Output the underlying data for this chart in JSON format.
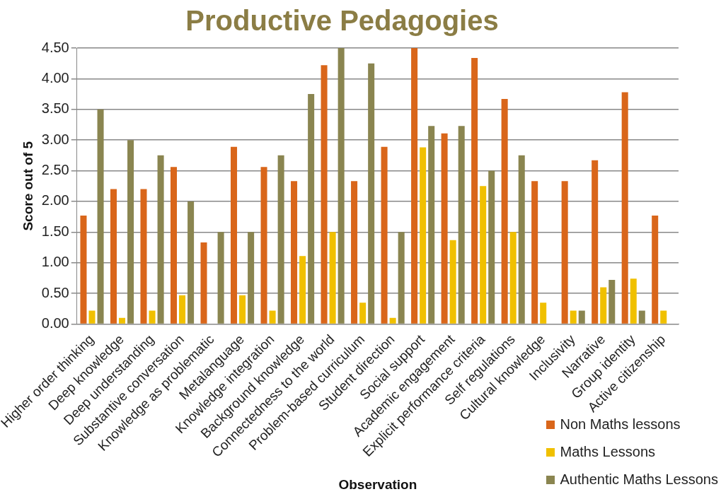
{
  "chart_data": {
    "type": "bar",
    "title": "Productive Pedagogies",
    "xlabel": "Observation",
    "ylabel": "Score out of 5",
    "categories": [
      "Higher order thinking",
      "Deep knowledge",
      "Deep understanding",
      "Substantive conversation",
      "Knowledge as problematic",
      "Metalanguage",
      "Knowledge integration",
      "Background knowledge",
      "Connectedness to the world",
      "Problem-based curriculum",
      "Student direction",
      "Social support",
      "Academic engagement",
      "Explicit performance criteria",
      "Self regulations",
      "Cultural knowledge",
      "Inclusivity",
      "Narrative",
      "Group identity",
      "Active citizenship"
    ],
    "series": [
      {
        "name": "Non Maths lessons",
        "color": "#d9661a",
        "values": [
          1.77,
          2.2,
          2.2,
          2.56,
          1.33,
          2.89,
          2.56,
          2.33,
          4.22,
          2.33,
          2.89,
          4.5,
          3.11,
          4.34,
          3.67,
          2.33,
          2.33,
          2.67,
          3.78,
          1.77
        ]
      },
      {
        "name": "Maths Lessons",
        "color": "#f0c000",
        "values": [
          0.22,
          0.1,
          0.22,
          0.47,
          0,
          0.47,
          0.22,
          1.11,
          1.5,
          0.35,
          0.1,
          2.88,
          1.37,
          2.25,
          1.5,
          0.35,
          0.22,
          0.6,
          0.74,
          0.22
        ]
      },
      {
        "name": "Authentic Maths Lessons",
        "color": "#8a8550",
        "values": [
          3.5,
          3.0,
          2.75,
          2.0,
          1.5,
          1.5,
          2.75,
          3.75,
          4.5,
          4.25,
          1.5,
          3.23,
          3.23,
          2.5,
          2.75,
          0,
          0.22,
          0.72,
          0.22,
          0
        ]
      }
    ],
    "ylim": [
      0,
      4.5
    ],
    "yticks": [
      {
        "value": 0,
        "label": "0.00"
      },
      {
        "value": 0.5,
        "label": "0.50"
      },
      {
        "value": 1,
        "label": "1.00"
      },
      {
        "value": 1.5,
        "label": "1.50"
      },
      {
        "value": 2,
        "label": "2.00"
      },
      {
        "value": 2.5,
        "label": "2.50"
      },
      {
        "value": 3,
        "label": "3.00"
      },
      {
        "value": 3.5,
        "label": "3.50"
      },
      {
        "value": 4,
        "label": "4.00"
      },
      {
        "value": 4.5,
        "label": "4.50"
      }
    ],
    "grid": "y",
    "legend": "bottom right"
  }
}
